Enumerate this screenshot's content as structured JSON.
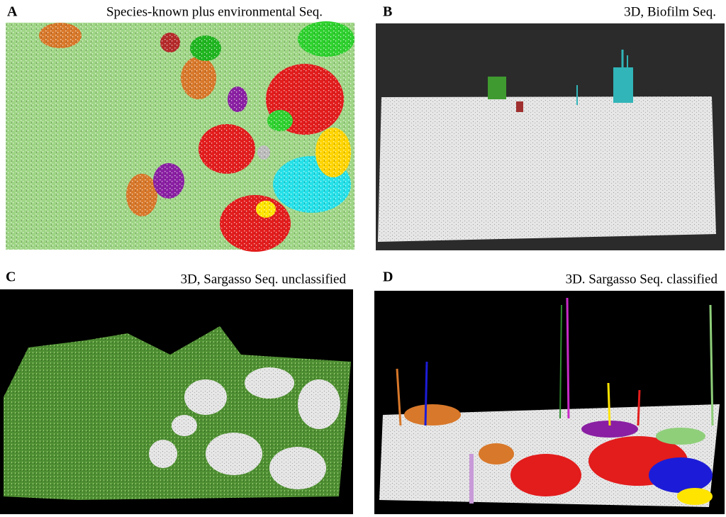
{
  "panels": [
    {
      "label": "A",
      "title": "Species-known plus environmental Seq."
    },
    {
      "label": "B",
      "title": "3D, Biofilm Seq."
    },
    {
      "label": "C",
      "title": "3D, Sargasso Seq. unclassified"
    },
    {
      "label": "D",
      "title": "3D. Sargasso Seq. classified"
    }
  ]
}
